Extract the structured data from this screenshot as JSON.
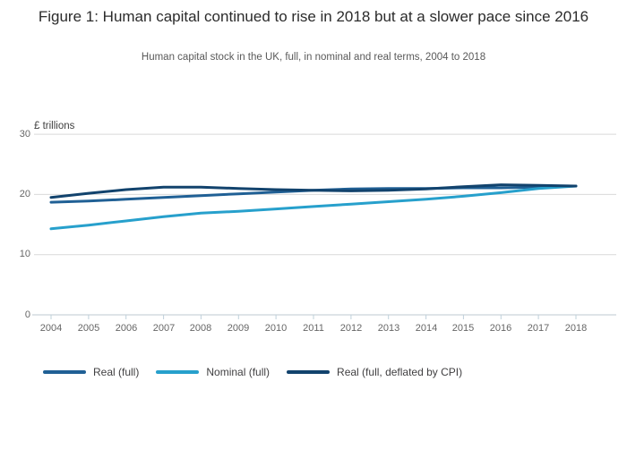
{
  "figure": {
    "title": "Figure 1: Human capital continued to rise in 2018 but at a slower pace since 2016",
    "subtitle": "Human capital stock in the UK, full, in nominal and real terms, 2004 to 2018",
    "unit_label": "£ trillions"
  },
  "colors": {
    "real_full": "#206095",
    "nominal_full": "#27a0cc",
    "real_cpi": "#12436d",
    "gridline": "#d9d9d9",
    "axis_line": "#bcc9d1",
    "tick_mark": "#bfd0da",
    "tick_text": "#666666"
  },
  "chart_data": {
    "type": "line",
    "title": "Figure 1: Human capital continued to rise in 2018 but at a slower pace since 2016",
    "subtitle": "Human capital stock in the UK, full, in nominal and real terms, 2004 to 2018",
    "ylabel": "£ trillions",
    "xlabel": "",
    "ylim": [
      0,
      30
    ],
    "yticks": [
      0,
      10,
      20,
      30
    ],
    "grid": true,
    "legend_position": "bottom",
    "x": [
      2004,
      2005,
      2006,
      2007,
      2008,
      2009,
      2010,
      2011,
      2012,
      2013,
      2014,
      2015,
      2016,
      2017,
      2018
    ],
    "series": [
      {
        "name": "Real (full)",
        "color": "#206095",
        "values": [
          18.7,
          18.9,
          19.2,
          19.5,
          19.8,
          20.1,
          20.4,
          20.7,
          20.9,
          21.0,
          21.0,
          21.1,
          21.1,
          21.2,
          21.4
        ]
      },
      {
        "name": "Nominal (full)",
        "color": "#27a0cc",
        "values": [
          14.3,
          14.9,
          15.6,
          16.3,
          16.9,
          17.2,
          17.6,
          18.0,
          18.4,
          18.8,
          19.2,
          19.7,
          20.3,
          21.0,
          21.4
        ]
      },
      {
        "name": "Real (full, deflated by CPI)",
        "color": "#12436d",
        "values": [
          19.5,
          20.2,
          20.8,
          21.2,
          21.2,
          21.0,
          20.8,
          20.7,
          20.6,
          20.7,
          20.9,
          21.3,
          21.6,
          21.5,
          21.4
        ]
      }
    ]
  }
}
